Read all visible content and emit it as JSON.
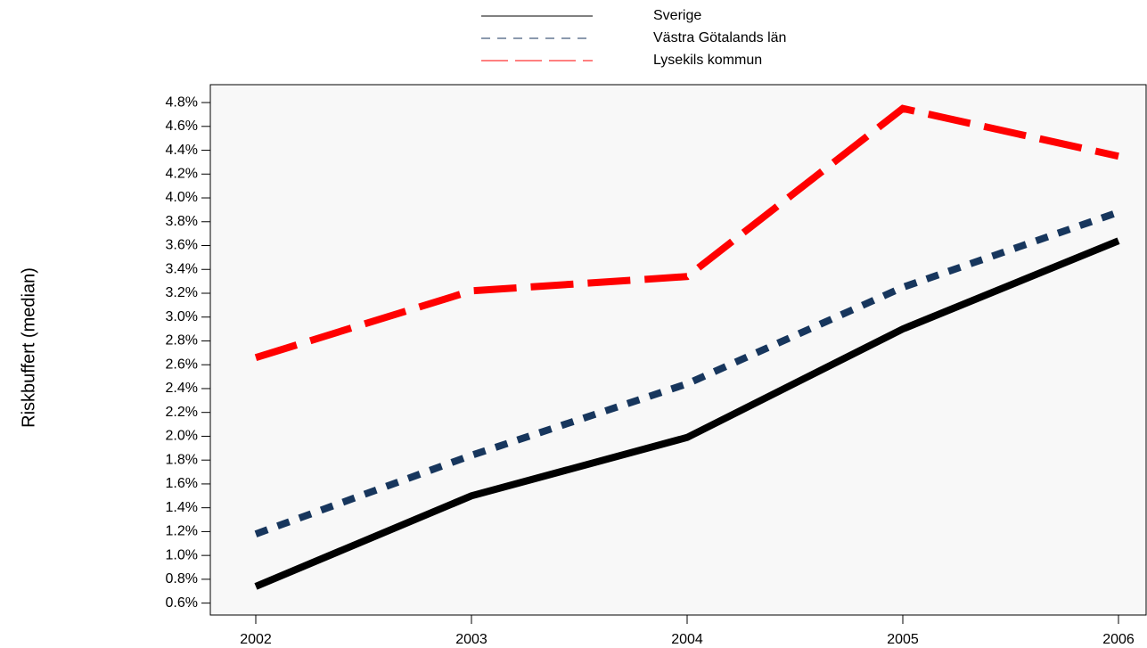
{
  "chart_data": {
    "type": "line",
    "y_label": "Riskbuffert (median)",
    "categories": [
      "2002",
      "2003",
      "2004",
      "2005",
      "2006"
    ],
    "series": [
      {
        "name": "Sverige",
        "color": "#000000",
        "values": [
          0.74,
          1.5,
          1.99,
          2.9,
          3.64
        ]
      },
      {
        "name": "Västra Götalands län",
        "color": "#17365d",
        "values": [
          1.18,
          1.84,
          2.44,
          3.25,
          3.88
        ]
      },
      {
        "name": "Lysekils kommun",
        "color": "#ff0000",
        "values": [
          2.66,
          3.22,
          3.34,
          4.75,
          4.35
        ]
      }
    ],
    "ylim": [
      0.5,
      4.95
    ],
    "yticks": [
      {
        "value": 0.6,
        "label": "0.6%"
      },
      {
        "value": 0.8,
        "label": "0.8%"
      },
      {
        "value": 1.0,
        "label": "1.0%"
      },
      {
        "value": 1.2,
        "label": "1.2%"
      },
      {
        "value": 1.4,
        "label": "1.4%"
      },
      {
        "value": 1.6,
        "label": "1.6%"
      },
      {
        "value": 1.8,
        "label": "1.8%"
      },
      {
        "value": 2.0,
        "label": "2.0%"
      },
      {
        "value": 2.2,
        "label": "2.2%"
      },
      {
        "value": 2.4,
        "label": "2.4%"
      },
      {
        "value": 2.6,
        "label": "2.6%"
      },
      {
        "value": 2.8,
        "label": "2.8%"
      },
      {
        "value": 3.0,
        "label": "3.0%"
      },
      {
        "value": 3.2,
        "label": "3.2%"
      },
      {
        "value": 3.4,
        "label": "3.4%"
      },
      {
        "value": 3.6,
        "label": "3.6%"
      },
      {
        "value": 3.8,
        "label": "3.8%"
      },
      {
        "value": 4.0,
        "label": "4.0%"
      },
      {
        "value": 4.2,
        "label": "4.2%"
      },
      {
        "value": 4.4,
        "label": "4.4%"
      },
      {
        "value": 4.6,
        "label": "4.6%"
      },
      {
        "value": 4.8,
        "label": "4.8%"
      }
    ],
    "grid": false,
    "legend": "top"
  }
}
